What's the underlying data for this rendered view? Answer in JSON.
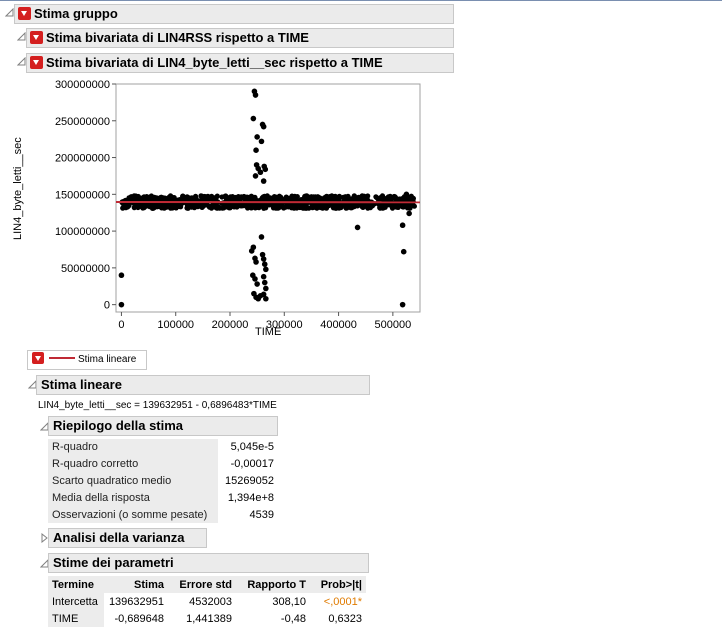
{
  "report": {
    "group_title": "Stima gruppo",
    "section1_title": "Stima bivariata di LIN4RSS rispetto a TIME",
    "section2_title": "Stima bivariata di LIN4_byte_letti__sec rispetto a TIME"
  },
  "legend": {
    "label": "Stima lineare"
  },
  "fit": {
    "title": "Stima lineare",
    "equation": "LIN4_byte_letti__sec = 139632951 - 0,6896483*TIME"
  },
  "summary": {
    "title": "Riepilogo della stima",
    "rows": [
      {
        "label": "R-quadro",
        "value": "5,045e-5"
      },
      {
        "label": "R-quadro corretto",
        "value": "-0,00017"
      },
      {
        "label": "Scarto quadratico medio",
        "value": "15269052"
      },
      {
        "label": "Media della risposta",
        "value": "1,394e+8"
      },
      {
        "label": "Osservazioni (o somme pesate)",
        "value": "4539"
      }
    ]
  },
  "anova": {
    "title": "Analisi della varianza"
  },
  "params": {
    "title": "Stime dei parametri",
    "headers": [
      "Termine",
      "Stima",
      "Errore std",
      "Rapporto T",
      "Prob>|t|"
    ],
    "rows": [
      {
        "term": "Intercetta",
        "estimate": "139632951",
        "stderr": "4532003",
        "tratio": "308,10",
        "prob": "<,0001*"
      },
      {
        "term": "TIME",
        "estimate": "-0,689648",
        "stderr": "1,441389",
        "tratio": "-0,48",
        "prob": "0,6323"
      }
    ]
  },
  "colors": {
    "fit_line": "#c02a35",
    "significant": "#e07b00",
    "button_red": "#d41f1f"
  },
  "chart_data": {
    "type": "scatter",
    "xlabel": "TIME",
    "ylabel": "LIN4_byte_letti__sec",
    "xlim": [
      -10000,
      550000
    ],
    "ylim": [
      -10000000,
      300000000
    ],
    "x_ticks": [
      0,
      100000,
      200000,
      300000,
      400000,
      500000
    ],
    "x_tick_labels": [
      "0",
      "100000",
      "200000",
      "300000",
      "400000",
      "500000"
    ],
    "y_ticks": [
      0,
      50000000,
      100000000,
      150000000,
      200000000,
      250000000,
      300000000
    ],
    "y_tick_labels": [
      "0",
      "50000000",
      "100000000",
      "150000000",
      "200000000",
      "250000000",
      "300000000"
    ],
    "band": {
      "x_start": 0,
      "x_end": 540000,
      "y_low": 131000000,
      "y_high": 148000000
    },
    "fit_line": {
      "intercept": 139632951,
      "slope": -0.6896483
    },
    "outliers": [
      [
        0,
        40000000
      ],
      [
        0,
        0
      ],
      [
        245000,
        290000000
      ],
      [
        247000,
        285000000
      ],
      [
        243000,
        253000000
      ],
      [
        250000,
        228000000
      ],
      [
        248000,
        210000000
      ],
      [
        249000,
        190000000
      ],
      [
        252000,
        185000000
      ],
      [
        256000,
        180000000
      ],
      [
        247000,
        175000000
      ],
      [
        260000,
        245000000
      ],
      [
        262000,
        242000000
      ],
      [
        258000,
        222000000
      ],
      [
        263000,
        188000000
      ],
      [
        265000,
        184000000
      ],
      [
        262000,
        168000000
      ],
      [
        243000,
        78000000
      ],
      [
        240000,
        73000000
      ],
      [
        258000,
        92000000
      ],
      [
        246000,
        63000000
      ],
      [
        248000,
        58000000
      ],
      [
        242000,
        40000000
      ],
      [
        246000,
        35000000
      ],
      [
        250000,
        28000000
      ],
      [
        244000,
        15000000
      ],
      [
        248000,
        10000000
      ],
      [
        252000,
        8000000
      ],
      [
        256000,
        12000000
      ],
      [
        260000,
        68000000
      ],
      [
        262000,
        62000000
      ],
      [
        264000,
        55000000
      ],
      [
        266000,
        48000000
      ],
      [
        262000,
        38000000
      ],
      [
        264000,
        30000000
      ],
      [
        266000,
        22000000
      ],
      [
        262000,
        14000000
      ],
      [
        266000,
        8000000
      ],
      [
        435000,
        105000000
      ],
      [
        518000,
        108000000
      ],
      [
        520000,
        72000000
      ],
      [
        518000,
        0
      ],
      [
        530000,
        124000000
      ],
      [
        525000,
        150000000
      ]
    ]
  }
}
